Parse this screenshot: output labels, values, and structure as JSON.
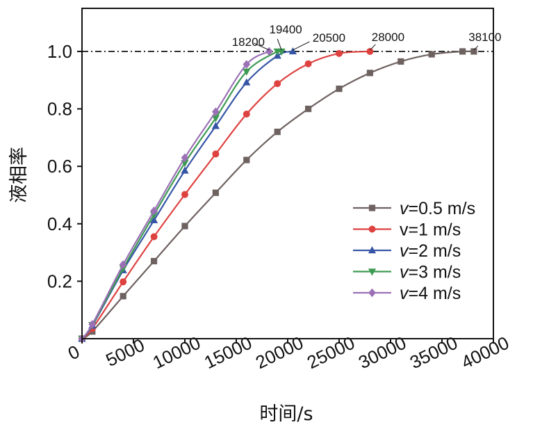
{
  "chart_data": {
    "type": "line",
    "title": "",
    "xlabel": "时间/s",
    "ylabel": "液相率",
    "xlim": [
      0,
      40000
    ],
    "ylim": [
      0,
      1.15
    ],
    "x_ticks": [
      {
        "value": 0,
        "label": "0"
      },
      {
        "value": 5000,
        "label": "5000"
      },
      {
        "value": 10000,
        "label": "10000"
      },
      {
        "value": 15000,
        "label": "15000"
      },
      {
        "value": 20000,
        "label": "20000"
      },
      {
        "value": 25000,
        "label": "25000"
      },
      {
        "value": 30000,
        "label": "30000"
      },
      {
        "value": 35000,
        "label": "35000"
      },
      {
        "value": 40000,
        "label": "40000"
      }
    ],
    "y_ticks": [
      {
        "value": 0.2,
        "label": "0.2"
      },
      {
        "value": 0.4,
        "label": "0.4"
      },
      {
        "value": 0.6,
        "label": "0.6"
      },
      {
        "value": 0.8,
        "label": "0.8"
      },
      {
        "value": 1.0,
        "label": "1.0"
      }
    ],
    "reference_line": {
      "y": 1.0,
      "style": "dash-dot",
      "color": "#000000"
    },
    "legend": {
      "position": "center-right"
    },
    "series": [
      {
        "name": "v=0.5 m/s",
        "var": "v",
        "rest": "=0.5 m/s",
        "italic": true,
        "color": "#6e6260",
        "marker": "square",
        "x": [
          0,
          1000,
          4000,
          7000,
          10000,
          13000,
          16000,
          19000,
          22000,
          25000,
          28000,
          31000,
          34000,
          37000,
          38100
        ],
        "y": [
          0,
          0.025,
          0.148,
          0.27,
          0.392,
          0.508,
          0.622,
          0.72,
          0.8,
          0.87,
          0.925,
          0.965,
          0.99,
          1.0,
          1.0
        ]
      },
      {
        "name": "v=1 m/s",
        "var": "v",
        "rest": "=1 m/s",
        "italic": false,
        "color": "#de4240",
        "marker": "circle",
        "x": [
          0,
          1000,
          4000,
          7000,
          10000,
          13000,
          16000,
          19000,
          22000,
          25000,
          28000
        ],
        "y": [
          0,
          0.035,
          0.198,
          0.355,
          0.502,
          0.643,
          0.782,
          0.888,
          0.957,
          0.993,
          1.0
        ]
      },
      {
        "name": "v=2 m/s",
        "var": "v",
        "rest": "=2 m/s",
        "italic": true,
        "color": "#3655a6",
        "marker": "triangle-up",
        "x": [
          0,
          1000,
          4000,
          7000,
          10000,
          13000,
          16000,
          19000,
          20500
        ],
        "y": [
          0,
          0.045,
          0.238,
          0.412,
          0.585,
          0.74,
          0.892,
          0.985,
          1.0
        ]
      },
      {
        "name": "v=3 m/s",
        "var": "v",
        "rest": "=3 m/s",
        "italic": true,
        "color": "#3d9a52",
        "marker": "triangle-down",
        "x": [
          0,
          1000,
          4000,
          7000,
          10000,
          13000,
          16000,
          19000,
          19400
        ],
        "y": [
          0,
          0.048,
          0.245,
          0.432,
          0.612,
          0.768,
          0.93,
          1.0,
          1.0
        ]
      },
      {
        "name": "v=4 m/s",
        "var": "v",
        "rest": "=4 m/s",
        "italic": true,
        "color": "#9b70b5",
        "marker": "diamond",
        "x": [
          0,
          1000,
          4000,
          7000,
          10000,
          13000,
          16000,
          18200
        ],
        "y": [
          0,
          0.05,
          0.258,
          0.445,
          0.63,
          0.79,
          0.955,
          1.0
        ]
      }
    ],
    "annotations": [
      {
        "text": "18200",
        "x": 18200,
        "y": 1.0
      },
      {
        "text": "19400",
        "x": 19400,
        "y": 1.0
      },
      {
        "text": "20500",
        "x": 20500,
        "y": 1.0
      },
      {
        "text": "28000",
        "x": 28000,
        "y": 1.0
      },
      {
        "text": "38100",
        "x": 38100,
        "y": 1.0
      }
    ]
  }
}
